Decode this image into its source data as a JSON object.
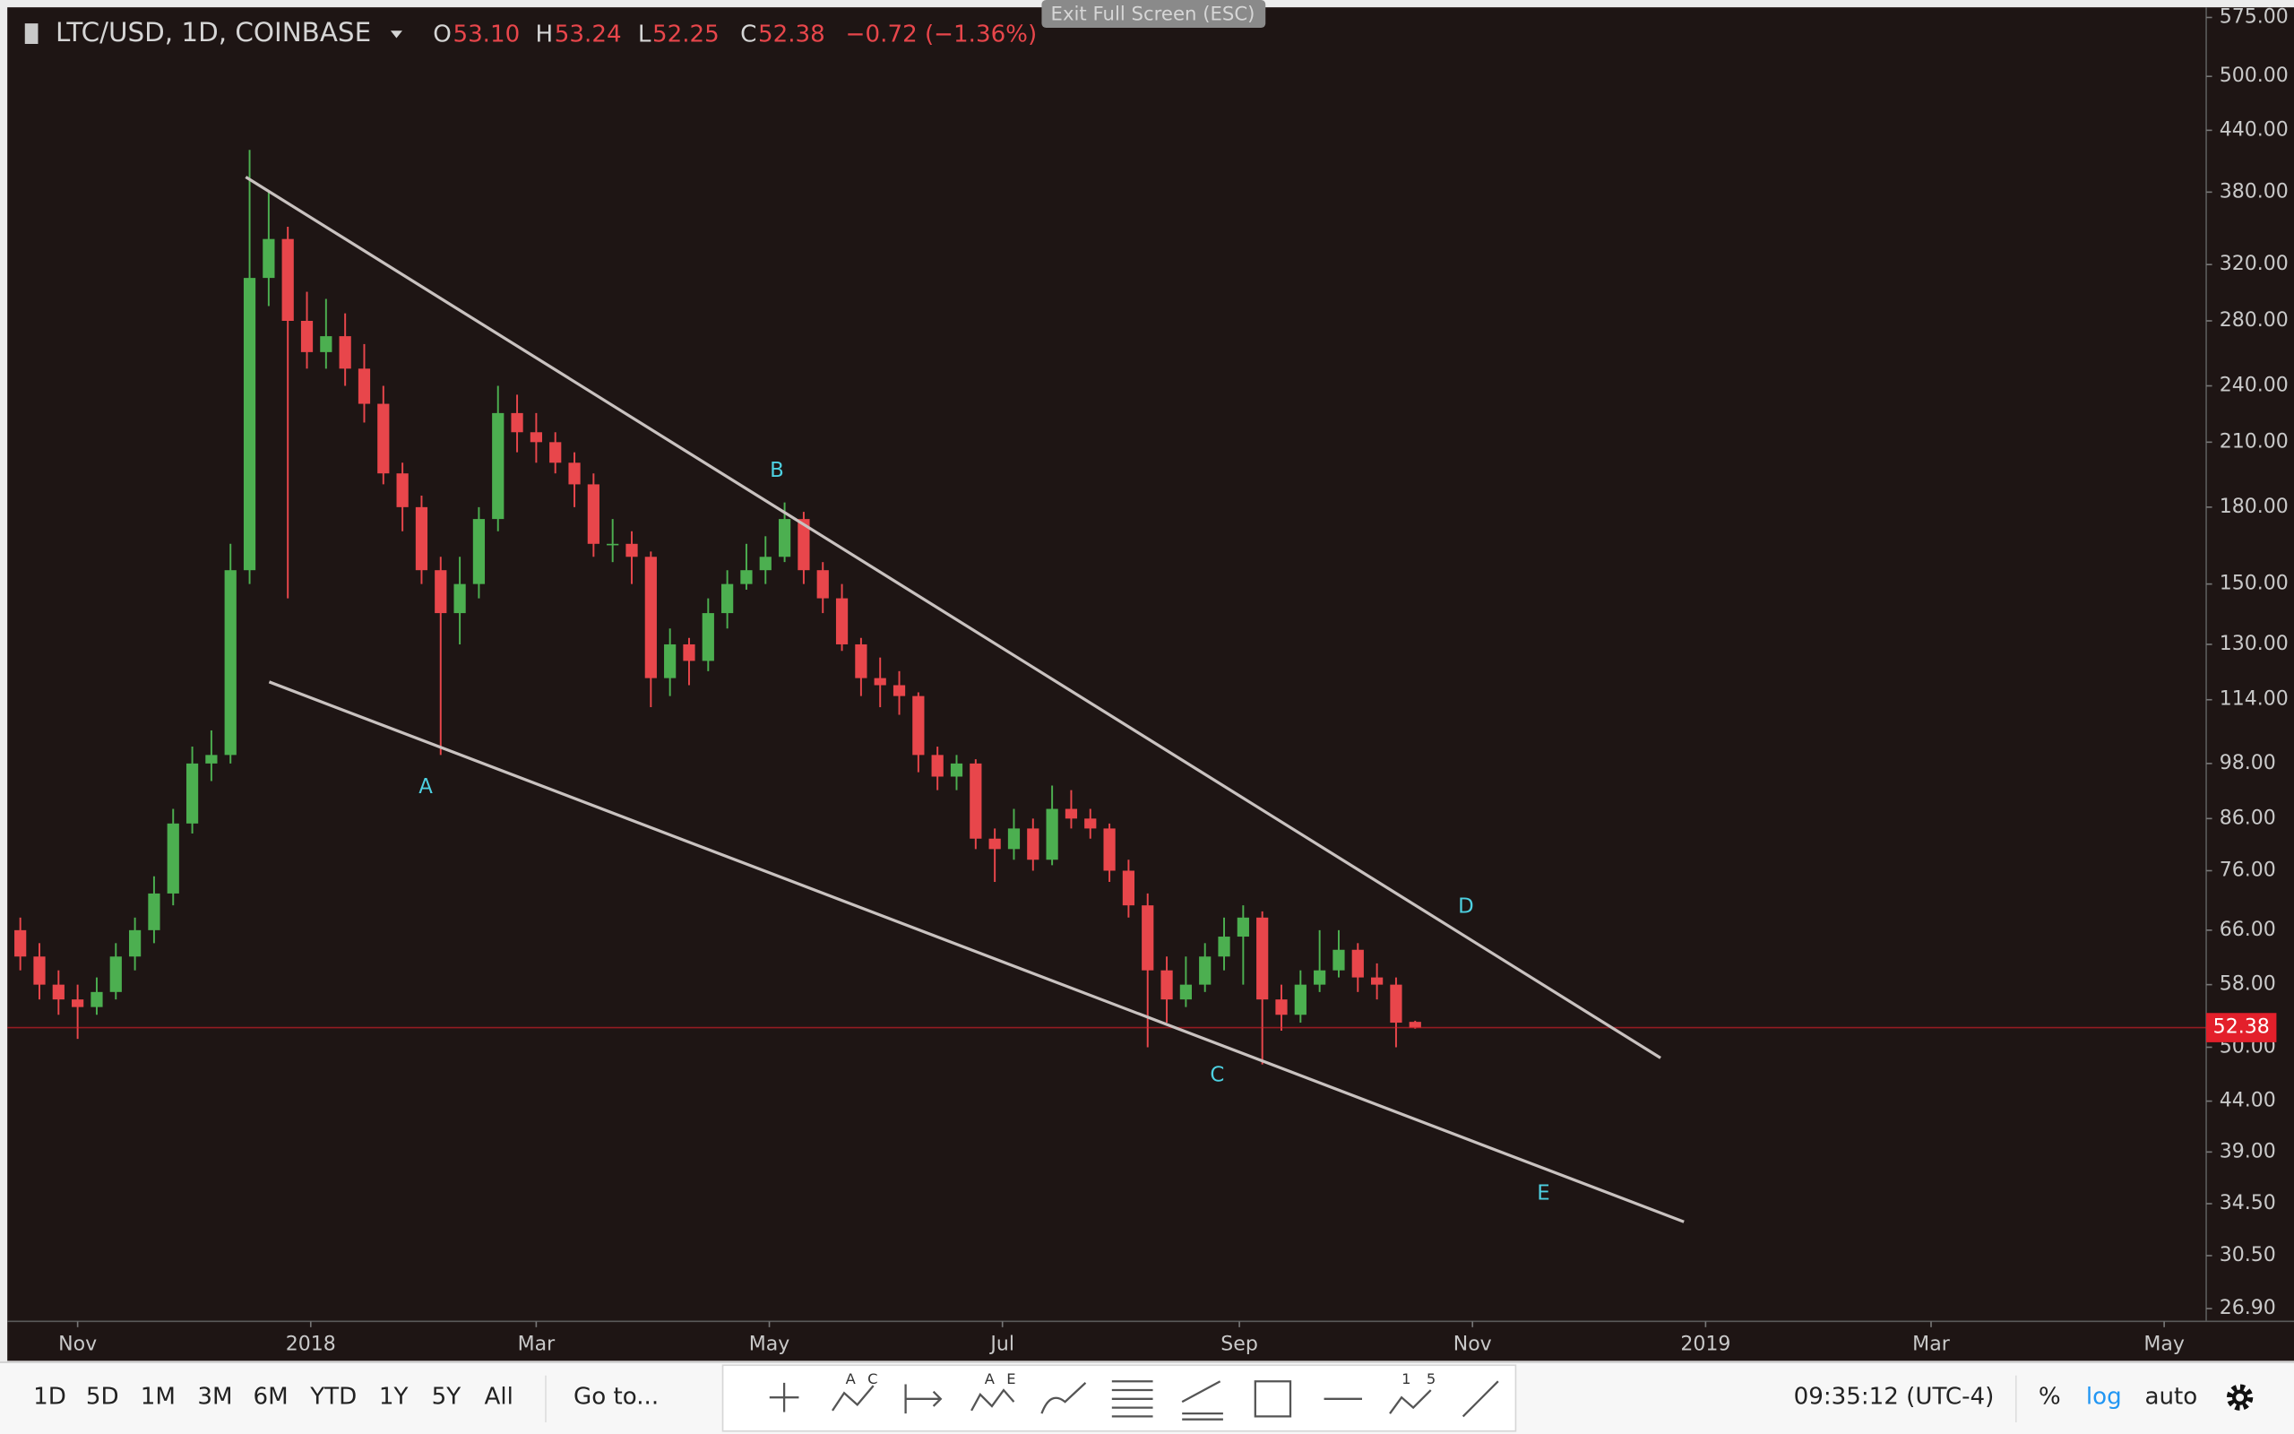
{
  "header": {
    "symbol": "LTC/USD, 1D, COINBASE",
    "ohlc": [
      {
        "key": "O",
        "value": "53.10"
      },
      {
        "key": "H",
        "value": "53.24"
      },
      {
        "key": "L",
        "value": "52.25"
      },
      {
        "key": "C",
        "value": "52.38"
      }
    ],
    "change": "−0.72 (−1.36%)"
  },
  "fullscreen_hint": "Exit Full Screen (ESC)",
  "chart_data": {
    "type": "candlestick",
    "x": [
      -15,
      -10,
      -5,
      0,
      5,
      10,
      15,
      20,
      25,
      30,
      35,
      40,
      45,
      50,
      55,
      60,
      65,
      70,
      75,
      80,
      85,
      90,
      95,
      100,
      105,
      110,
      115,
      120,
      125,
      130,
      135,
      140,
      145,
      150,
      155,
      160,
      165,
      170,
      175,
      180,
      185,
      190,
      195,
      200,
      205,
      210,
      215,
      220,
      225,
      230,
      235,
      240,
      245,
      250,
      255,
      260,
      265,
      270,
      275,
      280,
      285,
      290,
      295,
      300,
      305,
      310,
      315,
      320,
      325,
      330,
      335,
      340,
      345,
      350
    ],
    "open": [
      66,
      62,
      58,
      56,
      55,
      57,
      62,
      66,
      72,
      85,
      98,
      100,
      155,
      310,
      340,
      280,
      260,
      270,
      250,
      230,
      195,
      180,
      155,
      140,
      150,
      175,
      225,
      215,
      210,
      200,
      190,
      165,
      165,
      160,
      120,
      130,
      125,
      140,
      150,
      155,
      160,
      175,
      155,
      145,
      130,
      120,
      118,
      115,
      100,
      95,
      98,
      82,
      80,
      84,
      78,
      88,
      86,
      84,
      76,
      70,
      60,
      56,
      58,
      62,
      65,
      68,
      56,
      54,
      58,
      60,
      63,
      59,
      58,
      53.1
    ],
    "high": [
      68,
      64,
      60,
      58,
      59,
      64,
      68,
      75,
      88,
      102,
      106,
      165,
      420,
      380,
      350,
      300,
      295,
      285,
      265,
      240,
      200,
      185,
      160,
      160,
      180,
      240,
      235,
      225,
      215,
      205,
      195,
      175,
      170,
      162,
      135,
      132,
      145,
      155,
      165,
      168,
      182,
      178,
      158,
      150,
      132,
      126,
      122,
      116,
      102,
      100,
      99,
      84,
      88,
      86,
      93,
      92,
      88,
      85,
      78,
      72,
      62,
      62,
      64,
      68,
      70,
      69,
      58,
      60,
      66,
      66,
      64,
      61,
      59,
      53.24
    ],
    "low": [
      60,
      56,
      54,
      51,
      54,
      56,
      60,
      64,
      70,
      83,
      94,
      98,
      150,
      290,
      145,
      250,
      250,
      240,
      220,
      190,
      170,
      150,
      100,
      130,
      145,
      170,
      205,
      200,
      195,
      180,
      160,
      158,
      150,
      112,
      115,
      118,
      122,
      135,
      148,
      150,
      158,
      150,
      140,
      128,
      115,
      112,
      110,
      96,
      92,
      92,
      80,
      74,
      78,
      76,
      77,
      84,
      82,
      74,
      68,
      50,
      53,
      55,
      57,
      60,
      58,
      48,
      52,
      53,
      57,
      59,
      57,
      56,
      50,
      52.25
    ],
    "close": [
      62,
      58,
      56,
      55,
      57,
      62,
      66,
      72,
      85,
      98,
      100,
      155,
      310,
      340,
      280,
      260,
      270,
      250,
      230,
      195,
      180,
      155,
      140,
      150,
      175,
      225,
      215,
      210,
      200,
      190,
      165,
      165,
      160,
      120,
      130,
      125,
      140,
      150,
      155,
      160,
      175,
      155,
      145,
      130,
      120,
      118,
      115,
      100,
      95,
      98,
      82,
      80,
      84,
      78,
      88,
      86,
      84,
      76,
      70,
      60,
      56,
      58,
      62,
      65,
      68,
      56,
      54,
      58,
      60,
      63,
      59,
      58,
      53,
      52.38
    ],
    "up_color": "#4caf50",
    "down_color": "#e8464b",
    "xlim": [
      -18.4,
      557
    ],
    "xticks": [
      {
        "value": 0,
        "label": "Nov"
      },
      {
        "value": 61,
        "label": "2018"
      },
      {
        "value": 120,
        "label": "Mar"
      },
      {
        "value": 181,
        "label": "May"
      },
      {
        "value": 242,
        "label": "Jul"
      },
      {
        "value": 304,
        "label": "Sep"
      },
      {
        "value": 365,
        "label": "Nov"
      },
      {
        "value": 426,
        "label": "2019"
      },
      {
        "value": 485,
        "label": "Mar"
      },
      {
        "value": 546,
        "label": "May"
      }
    ],
    "ylim": [
      26.1,
      589
    ],
    "yticks": [
      {
        "value": 575,
        "label": "575.00"
      },
      {
        "value": 500,
        "label": "500.00"
      },
      {
        "value": 440,
        "label": "440.00"
      },
      {
        "value": 380,
        "label": "380.00"
      },
      {
        "value": 320,
        "label": "320.00"
      },
      {
        "value": 280,
        "label": "280.00"
      },
      {
        "value": 240,
        "label": "240.00"
      },
      {
        "value": 210,
        "label": "210.00"
      },
      {
        "value": 180,
        "label": "180.00"
      },
      {
        "value": 150,
        "label": "150.00"
      },
      {
        "value": 130,
        "label": "130.00"
      },
      {
        "value": 114,
        "label": "114.00"
      },
      {
        "value": 98,
        "label": "98.00"
      },
      {
        "value": 86,
        "label": "86.00"
      },
      {
        "value": 76,
        "label": "76.00"
      },
      {
        "value": 66,
        "label": "66.00"
      },
      {
        "value": 58,
        "label": "58.00"
      },
      {
        "value": 50,
        "label": "50.00"
      },
      {
        "value": 44,
        "label": "44.00"
      },
      {
        "value": 39,
        "label": "39.00"
      },
      {
        "value": 34.5,
        "label": "34.50"
      },
      {
        "value": 30.5,
        "label": "30.50"
      },
      {
        "value": 26.9,
        "label": "26.90"
      }
    ],
    "log_scale": true,
    "grid": false,
    "last_price_label": "52.38",
    "last_price_color": "#e3202b",
    "annotations": [
      "A",
      "B",
      "C",
      "D",
      "E"
    ]
  },
  "toolbar": {
    "ranges": [
      "1D",
      "5D",
      "1M",
      "3M",
      "6M",
      "YTD",
      "1Y",
      "5Y",
      "All"
    ],
    "goto": "Go to...",
    "tool_labels": [
      "A",
      "C",
      "A",
      "E",
      "1",
      "5"
    ],
    "clock": "09:35:12 (UTC-4)",
    "percent": "%",
    "log": "log",
    "auto": "auto"
  }
}
